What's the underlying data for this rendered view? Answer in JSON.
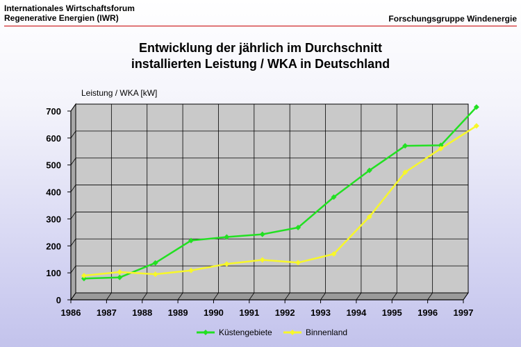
{
  "header": {
    "left_line1": "Internationales Wirtschaftsforum",
    "left_line2": "Regenerative Energien (IWR)",
    "right": "Forschungsgruppe Windenergie"
  },
  "colors": {
    "kuestengebiete": "#22e022",
    "binnenland": "#f7f72a",
    "rule": "#c80000"
  },
  "chart_data": {
    "type": "line",
    "title_line1": "Entwicklung der jährlich im Durchschnitt",
    "title_line2": "installierten Leistung / WKA in Deutschland",
    "ylabel": "Leistung / WKA [kW]",
    "xlabel": "",
    "ylim": [
      0,
      700
    ],
    "yticks": [
      0,
      100,
      200,
      300,
      400,
      500,
      600,
      700
    ],
    "xticks": [
      "1986",
      "1987",
      "1988",
      "1989",
      "1990",
      "1991",
      "1992",
      "1993",
      "1994",
      "1995",
      "1996",
      "1997"
    ],
    "x": [
      1986.3,
      1987.3,
      1988.3,
      1989.3,
      1990.3,
      1991.3,
      1992.3,
      1993.3,
      1994.3,
      1995.3,
      1996.3,
      1997.3
    ],
    "grid": true,
    "legend_position": "bottom-center",
    "series": [
      {
        "name": "Küstengebiete",
        "values": [
          66,
          70,
          124,
          207,
          220,
          230,
          255,
          368,
          467,
          558,
          560,
          702
        ]
      },
      {
        "name": "Binnenland",
        "values": [
          77,
          90,
          82,
          96,
          120,
          135,
          125,
          157,
          295,
          460,
          548,
          632
        ]
      }
    ]
  }
}
